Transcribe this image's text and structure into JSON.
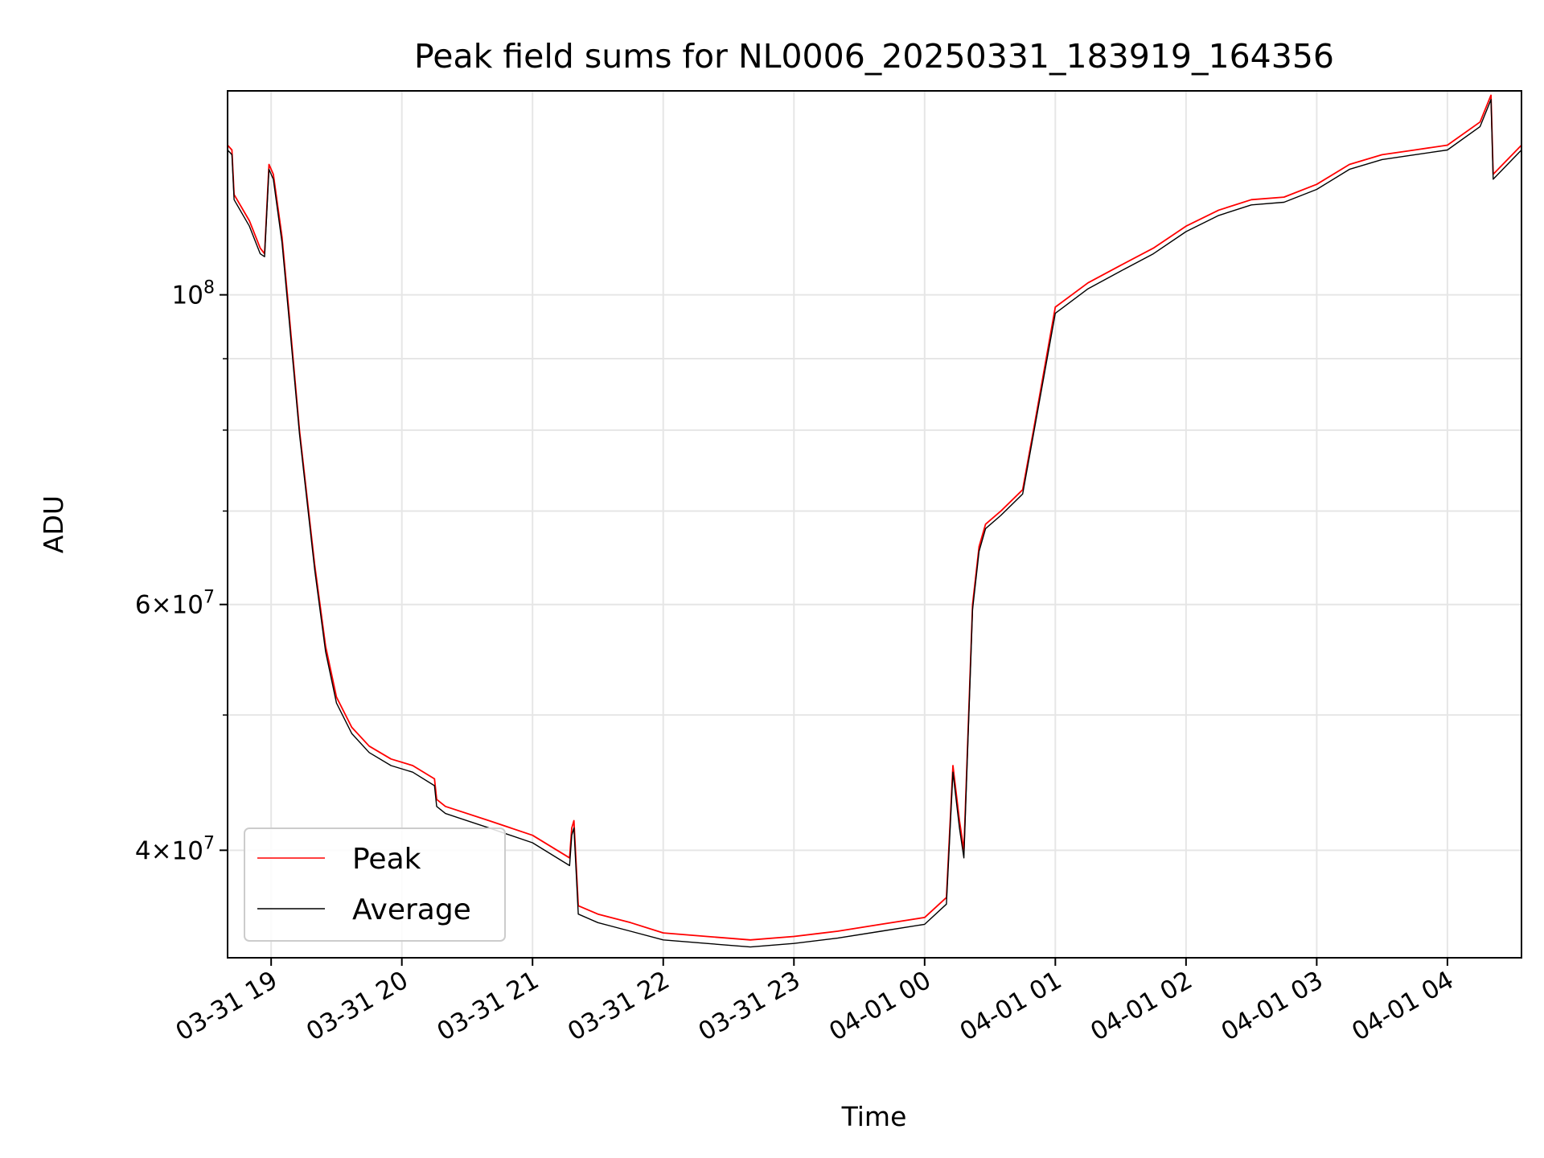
{
  "chart_data": {
    "type": "line",
    "title": "Peak field sums for NL0006_20250331_183919_164356",
    "xlabel": "Time",
    "ylabel": "ADU",
    "x_axis": "datetime",
    "xlim": [
      "2025-03-31 18:40",
      "2025-04-01 04:34"
    ],
    "ylim": [
      33500000,
      140000000
    ],
    "yscale": "log",
    "grid": true,
    "legend_placement": "lower-left",
    "x_ticks": [
      {
        "t": "2025-03-31 19:00",
        "label": "03-31 19"
      },
      {
        "t": "2025-03-31 20:00",
        "label": "03-31 20"
      },
      {
        "t": "2025-03-31 21:00",
        "label": "03-31 21"
      },
      {
        "t": "2025-03-31 22:00",
        "label": "03-31 22"
      },
      {
        "t": "2025-03-31 23:00",
        "label": "03-31 23"
      },
      {
        "t": "2025-04-01 00:00",
        "label": "04-01 00"
      },
      {
        "t": "2025-04-01 01:00",
        "label": "04-01 01"
      },
      {
        "t": "2025-04-01 02:00",
        "label": "04-01 02"
      },
      {
        "t": "2025-04-01 03:00",
        "label": "04-01 03"
      },
      {
        "t": "2025-04-01 04:00",
        "label": "04-01 04"
      }
    ],
    "y_major_ticks": [
      {
        "value": 40000000,
        "mantissa": "4",
        "exp": "7"
      },
      {
        "value": 60000000,
        "mantissa": "6",
        "exp": "7"
      },
      {
        "value": 100000000,
        "mantissa": "",
        "exp": "8"
      }
    ],
    "y_minor_ticks": [
      50000000,
      70000000,
      80000000,
      90000000
    ],
    "colors": {
      "peak": "#ff0000",
      "average": "#000000",
      "grid": "#e6e6e6"
    },
    "series": [
      {
        "name": "Peak",
        "color": "#ff0000",
        "x": [
          "2025-03-31 18:40",
          "2025-03-31 18:42",
          "2025-03-31 18:43",
          "2025-03-31 18:50",
          "2025-03-31 18:55",
          "2025-03-31 18:57",
          "2025-03-31 18:59",
          "2025-03-31 19:01",
          "2025-03-31 19:05",
          "2025-03-31 19:08",
          "2025-03-31 19:13",
          "2025-03-31 19:20",
          "2025-03-31 19:25",
          "2025-03-31 19:30",
          "2025-03-31 19:37",
          "2025-03-31 19:45",
          "2025-03-31 19:55",
          "2025-03-31 20:05",
          "2025-03-31 20:15",
          "2025-03-31 20:16",
          "2025-03-31 20:20",
          "2025-03-31 20:40",
          "2025-03-31 21:00",
          "2025-03-31 21:17",
          "2025-03-31 21:18",
          "2025-03-31 21:19",
          "2025-03-31 21:21",
          "2025-03-31 21:30",
          "2025-03-31 21:45",
          "2025-03-31 22:00",
          "2025-03-31 22:20",
          "2025-03-31 22:40",
          "2025-03-31 23:00",
          "2025-03-31 23:20",
          "2025-03-31 23:40",
          "2025-04-01 00:00",
          "2025-04-01 00:10",
          "2025-04-01 00:13",
          "2025-04-01 00:16",
          "2025-04-01 00:18",
          "2025-04-01 00:22",
          "2025-04-01 00:25",
          "2025-04-01 00:28",
          "2025-04-01 00:35",
          "2025-04-01 00:45",
          "2025-04-01 00:50",
          "2025-04-01 01:00",
          "2025-04-01 01:15",
          "2025-04-01 01:30",
          "2025-04-01 01:45",
          "2025-04-01 02:00",
          "2025-04-01 02:15",
          "2025-04-01 02:30",
          "2025-04-01 02:45",
          "2025-04-01 03:00",
          "2025-04-01 03:15",
          "2025-04-01 03:30",
          "2025-04-01 03:45",
          "2025-04-01 04:00",
          "2025-04-01 04:15",
          "2025-04-01 04:20",
          "2025-04-01 04:21",
          "2025-04-01 04:34"
        ],
        "values": [
          128000000,
          127000000,
          118000000,
          113000000,
          108000000,
          107000000,
          124000000,
          122000000,
          110000000,
          98000000,
          80000000,
          64000000,
          56000000,
          51500000,
          49000000,
          47500000,
          46500000,
          46000000,
          45000000,
          43500000,
          43000000,
          42000000,
          41000000,
          39500000,
          41500000,
          42000000,
          36500000,
          36000000,
          35500000,
          34900000,
          34700000,
          34500000,
          34700000,
          35000000,
          35400000,
          35800000,
          37000000,
          46000000,
          42000000,
          40000000,
          60000000,
          66000000,
          68500000,
          70000000,
          72500000,
          80000000,
          98000000,
          102000000,
          105000000,
          108000000,
          112000000,
          115000000,
          117000000,
          117500000,
          120000000,
          124000000,
          126000000,
          127000000,
          128000000,
          133000000,
          139000000,
          122000000,
          128000000
        ]
      },
      {
        "name": "Average",
        "color": "#000000",
        "x": [
          "2025-03-31 18:40",
          "2025-03-31 18:42",
          "2025-03-31 18:43",
          "2025-03-31 18:50",
          "2025-03-31 18:55",
          "2025-03-31 18:57",
          "2025-03-31 18:59",
          "2025-03-31 19:01",
          "2025-03-31 19:05",
          "2025-03-31 19:08",
          "2025-03-31 19:13",
          "2025-03-31 19:20",
          "2025-03-31 19:25",
          "2025-03-31 19:30",
          "2025-03-31 19:37",
          "2025-03-31 19:45",
          "2025-03-31 19:55",
          "2025-03-31 20:05",
          "2025-03-31 20:15",
          "2025-03-31 20:16",
          "2025-03-31 20:20",
          "2025-03-31 20:40",
          "2025-03-31 21:00",
          "2025-03-31 21:17",
          "2025-03-31 21:18",
          "2025-03-31 21:19",
          "2025-03-31 21:21",
          "2025-03-31 21:30",
          "2025-03-31 21:45",
          "2025-03-31 22:00",
          "2025-03-31 22:20",
          "2025-03-31 22:40",
          "2025-03-31 23:00",
          "2025-03-31 23:20",
          "2025-03-31 23:40",
          "2025-04-01 00:00",
          "2025-04-01 00:10",
          "2025-04-01 00:13",
          "2025-04-01 00:16",
          "2025-04-01 00:18",
          "2025-04-01 00:22",
          "2025-04-01 00:25",
          "2025-04-01 00:28",
          "2025-04-01 00:35",
          "2025-04-01 00:45",
          "2025-04-01 00:50",
          "2025-04-01 01:00",
          "2025-04-01 01:15",
          "2025-04-01 01:30",
          "2025-04-01 01:45",
          "2025-04-01 02:00",
          "2025-04-01 02:15",
          "2025-04-01 02:30",
          "2025-04-01 02:45",
          "2025-04-01 03:00",
          "2025-04-01 03:15",
          "2025-04-01 03:30",
          "2025-04-01 03:45",
          "2025-04-01 04:00",
          "2025-04-01 04:15",
          "2025-04-01 04:20",
          "2025-04-01 04:21",
          "2025-04-01 04:34"
        ],
        "values": [
          127000000,
          126000000,
          117000000,
          112000000,
          107000000,
          106500000,
          123000000,
          121000000,
          109000000,
          97000000,
          79500000,
          63500000,
          55500000,
          51000000,
          48500000,
          47000000,
          46000000,
          45500000,
          44500000,
          43000000,
          42500000,
          41500000,
          40500000,
          39000000,
          41000000,
          41500000,
          36000000,
          35500000,
          35000000,
          34500000,
          34300000,
          34100000,
          34300000,
          34600000,
          35000000,
          35400000,
          36600000,
          45500000,
          41500000,
          39500000,
          59500000,
          65500000,
          68000000,
          69500000,
          72000000,
          79500000,
          97000000,
          101000000,
          104000000,
          107000000,
          111000000,
          114000000,
          116000000,
          116500000,
          119000000,
          123000000,
          125000000,
          126000000,
          127000000,
          132000000,
          138000000,
          121000000,
          127000000
        ]
      }
    ]
  }
}
